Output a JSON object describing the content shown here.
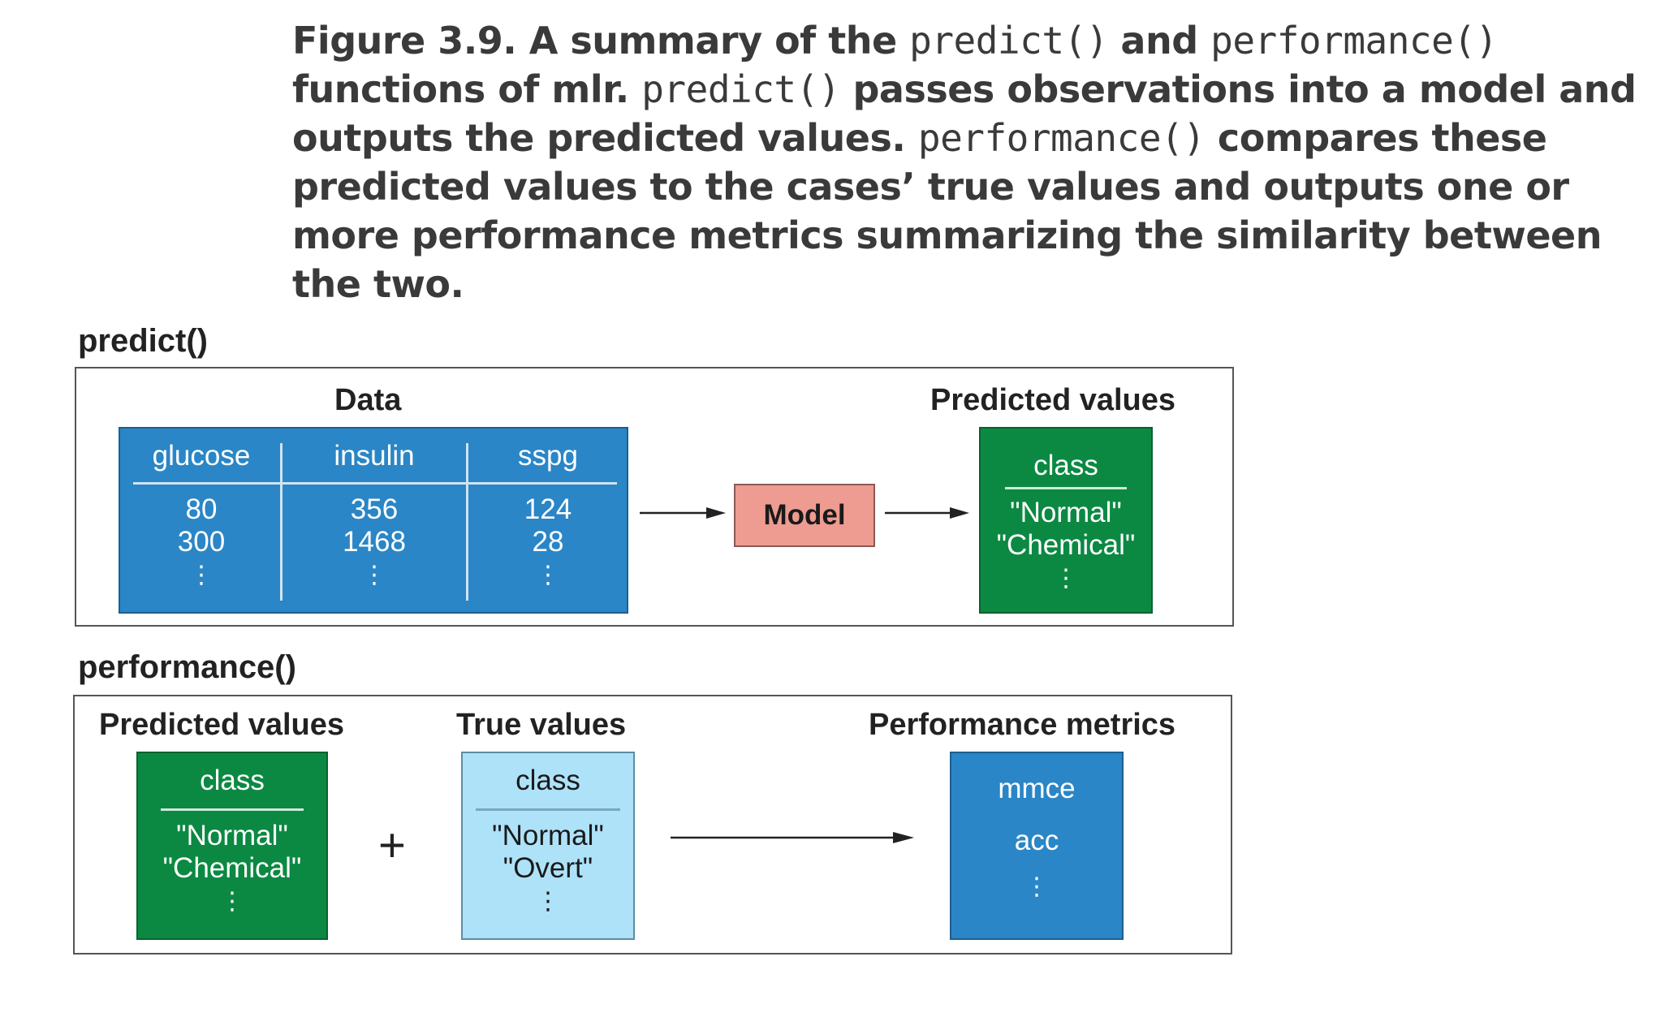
{
  "caption": {
    "p1": "Figure 3.9. A summary of the ",
    "c1": "predict()",
    "p2": " and ",
    "c2": "performance()",
    "p3": " functions of mlr. ",
    "c3": "predict()",
    "p4": " passes observations into a model and outputs the predicted values. ",
    "c4": "performance()",
    "p5": " compares these predicted values to the cases’ true values and outputs one or more performance metrics summarizing the similarity between the two."
  },
  "predict": {
    "label": "predict()",
    "data_heading": "Data",
    "columns": [
      {
        "header": "glucose",
        "values": [
          "80",
          "300"
        ],
        "more": "⋮"
      },
      {
        "header": "insulin",
        "values": [
          "356",
          "1468"
        ],
        "more": "⋮"
      },
      {
        "header": "sspg",
        "values": [
          "124",
          "28"
        ],
        "more": "⋮"
      }
    ],
    "model_label": "Model",
    "predicted_heading": "Predicted values",
    "predicted": {
      "header": "class",
      "values": [
        "\"Normal\"",
        "\"Chemical\""
      ],
      "more": "⋮"
    }
  },
  "performance": {
    "label": "performance()",
    "predicted_heading": "Predicted values",
    "predicted": {
      "header": "class",
      "values": [
        "\"Normal\"",
        "\"Chemical\""
      ],
      "more": "⋮"
    },
    "plus": "+",
    "true_heading": "True values",
    "true": {
      "header": "class",
      "values": [
        "\"Normal\"",
        "\"Overt\""
      ],
      "more": "⋮"
    },
    "metrics_heading": "Performance metrics",
    "metrics": [
      "mmce",
      "acc"
    ],
    "metrics_more": "⋮"
  },
  "colors": {
    "data_blue": "#2a86c6",
    "predicted_green": "#0b8942",
    "true_light_blue": "#aee2f9",
    "model_pink": "#ee9b91"
  }
}
